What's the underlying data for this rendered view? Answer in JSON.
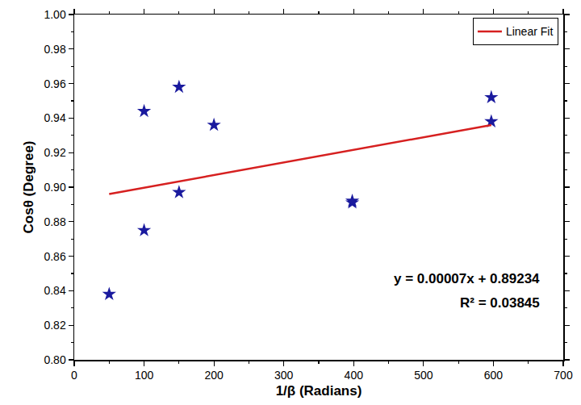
{
  "chart_data": {
    "type": "scatter",
    "x_label": "1/β (Radians)",
    "y_label": "Cosθ (Degree)",
    "xlim": [
      0,
      700
    ],
    "xticks": [
      0,
      100,
      200,
      300,
      400,
      500,
      600,
      700
    ],
    "ylim": [
      0.8,
      1.0
    ],
    "yticks": [
      {
        "value": 0.8,
        "label": "0.80"
      },
      0.82,
      0.84,
      0.86,
      0.88,
      {
        "value": 0.9,
        "label": "0.90"
      },
      0.92,
      0.94,
      0.96,
      0.98,
      {
        "value": 1.0,
        "label": "1.00"
      }
    ],
    "grid": false,
    "legend": "top right",
    "series": [
      {
        "type": "scatter",
        "marker": "star",
        "color": "#1a1a9e",
        "x": [
          50,
          100,
          100,
          150,
          150,
          200,
          398,
          398,
          597,
          597
        ],
        "values": [
          0.838,
          0.944,
          0.875,
          0.958,
          0.897,
          0.936,
          0.891,
          0.892,
          0.952,
          0.938
        ]
      },
      {
        "name": "Linear Fit",
        "type": "line",
        "line_style": "solid",
        "color": "#d62020",
        "x": [
          50,
          597
        ],
        "values": [
          0.896,
          0.936
        ]
      }
    ],
    "annotations": [
      "y = 0.00007x + 0.89234",
      "R² = 0.03845"
    ]
  }
}
